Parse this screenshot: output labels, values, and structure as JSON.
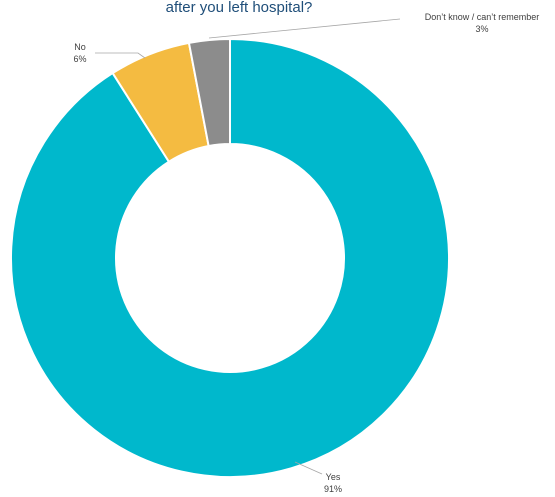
{
  "chart_data": {
    "type": "pie",
    "subtype": "donut",
    "title": "after you left hospital?",
    "slices": [
      {
        "label": "Yes",
        "value": 91,
        "value_label": "91%",
        "color": "#00b8cc"
      },
      {
        "label": "No",
        "value": 6,
        "value_label": "6%",
        "color": "#f4bb41"
      },
      {
        "label": "Don’t know / can’t remember",
        "value": 3,
        "value_label": "3%",
        "color": "#8c8c8c"
      }
    ]
  }
}
